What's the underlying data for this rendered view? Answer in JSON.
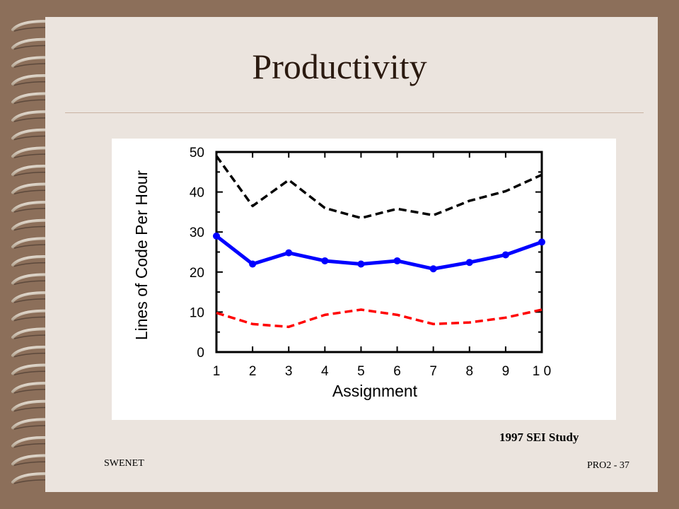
{
  "slide": {
    "title": "Productivity",
    "caption": "1997 SEI Study",
    "footer_left": "SWENET",
    "footer_right": "PRO2 - 37",
    "colors": {
      "background": "#8c6f5a",
      "slide": "#ebe4de",
      "title": "#2b1a10"
    }
  },
  "chart_data": {
    "type": "line",
    "title": "",
    "xlabel": "Assignment",
    "ylabel": "Lines of Code Per Hour",
    "x": [
      1,
      2,
      3,
      4,
      5,
      6,
      7,
      8,
      9,
      10
    ],
    "xtick_labels": [
      "1",
      "2",
      "3",
      "4",
      "5",
      "6",
      "7",
      "8",
      "9",
      "1 0"
    ],
    "ylim": [
      0,
      50
    ],
    "yticks": [
      0,
      10,
      20,
      30,
      40,
      50
    ],
    "grid": false,
    "series": [
      {
        "values": [
          49,
          36.5,
          43,
          36,
          33.5,
          35.8,
          34.2,
          37.8,
          40.2,
          44.3
        ],
        "color": "#000000",
        "style": "dashed",
        "markers": false
      },
      {
        "values": [
          29,
          22,
          24.8,
          22.8,
          22,
          22.8,
          20.8,
          22.4,
          24.3,
          27.5
        ],
        "color": "#0000ff",
        "style": "solid",
        "markers": true
      },
      {
        "values": [
          9.8,
          7,
          6.3,
          9.3,
          10.6,
          9.3,
          7,
          7.4,
          8.6,
          10.6
        ],
        "color": "#ff0000",
        "style": "dashed",
        "markers": false
      }
    ]
  }
}
